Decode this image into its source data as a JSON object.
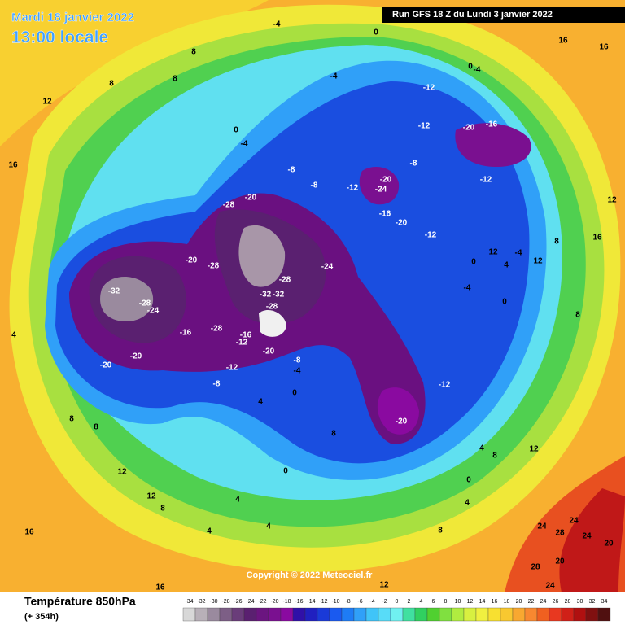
{
  "header": {
    "title": "Mardi 18 janvier 2022",
    "time": "13:00 locale",
    "run": "Run GFS 18 Z du Lundi 3 janvier 2022"
  },
  "copyright": "Copyright © 2022 Meteociel.fr",
  "legend": {
    "title": "Température 850hPa",
    "lead": "(+ 354h)",
    "scale": [
      -34,
      -32,
      -30,
      -28,
      -26,
      -24,
      -22,
      -20,
      -18,
      -16,
      -14,
      -12,
      -10,
      -8,
      -6,
      -4,
      -2,
      0,
      2,
      4,
      6,
      8,
      10,
      12,
      14,
      16,
      18,
      20,
      22,
      24,
      26,
      28,
      30,
      32,
      34
    ],
    "colors": [
      "#d8d8d8",
      "#b8b0b8",
      "#9a8a9e",
      "#7d5f86",
      "#6a3d7a",
      "#5a2070",
      "#6b1580",
      "#7a1090",
      "#8a0aa0",
      "#3010a8",
      "#2020c0",
      "#1a3ad8",
      "#1a5af0",
      "#1e7cf5",
      "#30a0f8",
      "#40c4f8",
      "#58dcf8",
      "#70f0f0",
      "#40e0a0",
      "#30d060",
      "#50d030",
      "#80e040",
      "#b0ec40",
      "#d8f040",
      "#f0f040",
      "#f8e030",
      "#f8c830",
      "#f8a830",
      "#f88830",
      "#f06020",
      "#e83820",
      "#d02018",
      "#b01010",
      "#801010",
      "#501010"
    ]
  },
  "map_labels": [
    -32,
    -28,
    -24,
    -20,
    -28,
    -20,
    -16,
    -20,
    -28,
    -16,
    -12,
    -20,
    -8,
    -4,
    0,
    -28,
    -24,
    -32,
    -32,
    -28,
    -20,
    -28,
    -20,
    -12,
    -12,
    -20,
    -16,
    -20,
    -24,
    -12,
    -8,
    -8,
    -4,
    0,
    -12,
    -12,
    -20,
    -16,
    -4,
    0,
    -8,
    -12,
    -4,
    0,
    4,
    12,
    4,
    8,
    0,
    4,
    4,
    4,
    8,
    12,
    8,
    16,
    16,
    12,
    8,
    8,
    8,
    -4,
    0,
    -4,
    16,
    16,
    20,
    24,
    28,
    24,
    24,
    28,
    24,
    20,
    12,
    8,
    4,
    0,
    8,
    16,
    12,
    8,
    -4,
    12,
    4,
    8,
    12,
    16,
    12,
    8,
    4,
    0,
    -12,
    -8
  ]
}
